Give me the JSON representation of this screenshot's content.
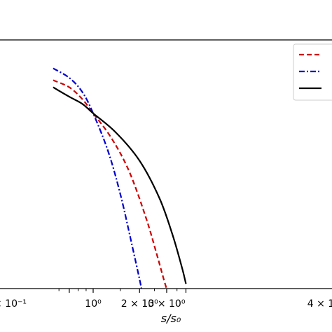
{
  "chart_data": {
    "type": "line",
    "xscale": "log",
    "xlabel": "s/s₀",
    "x_ticks": [
      {
        "value": 0.7,
        "label": "× 10⁻¹"
      },
      {
        "value": 1.0,
        "label": "10⁰"
      },
      {
        "value": 2.0,
        "label": "2 × 10⁰"
      },
      {
        "value": 3.0,
        "label": "3 × 10⁰"
      },
      {
        "value": 4.0,
        "label": "4 × 1"
      }
    ],
    "legend_position": "top-right",
    "grid": false,
    "series": [
      {
        "style": "dashed",
        "color": "#cc0000",
        "x": [
          0.55,
          0.7,
          0.85,
          1.0,
          1.3,
          1.7,
          2.2,
          2.6,
          2.9,
          3.1
        ],
        "y": [
          0.88,
          0.85,
          0.8,
          0.74,
          0.64,
          0.5,
          0.3,
          0.14,
          0.03,
          -0.03
        ]
      },
      {
        "style": "dashdot",
        "color": "#0000cc",
        "x": [
          0.55,
          0.7,
          0.85,
          1.0,
          1.25,
          1.5,
          1.75,
          2.0,
          2.1
        ],
        "y": [
          0.93,
          0.89,
          0.83,
          0.74,
          0.58,
          0.4,
          0.21,
          0.04,
          -0.03
        ]
      },
      {
        "style": "solid",
        "color": "#000000",
        "x": [
          0.55,
          0.7,
          0.85,
          1.0,
          1.4,
          2.0,
          2.7,
          3.3,
          3.8,
          4.0
        ],
        "y": [
          0.85,
          0.81,
          0.78,
          0.74,
          0.66,
          0.54,
          0.38,
          0.22,
          0.08,
          0.02
        ]
      }
    ]
  }
}
